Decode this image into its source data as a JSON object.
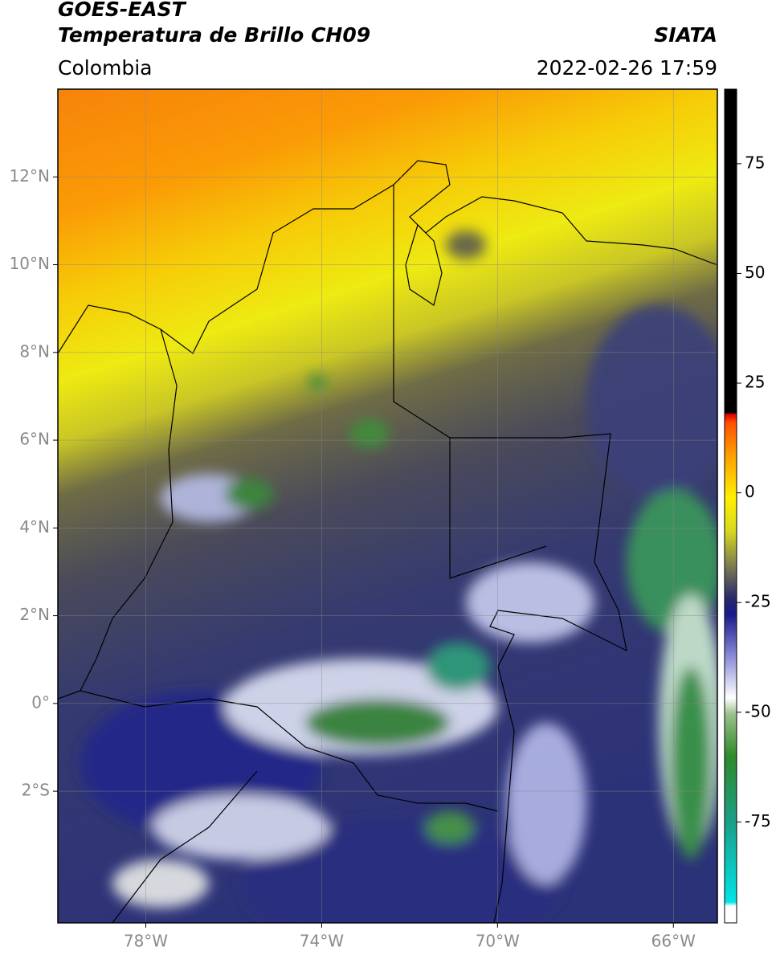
{
  "header": {
    "satellite": "GOES-EAST",
    "product": "Temperatura de Brillo CH09",
    "source": "SIATA",
    "region": "Colombia",
    "timestamp": "2022-02-26 17:59"
  },
  "map": {
    "xlim": [
      -80,
      -65
    ],
    "ylim": [
      -5,
      14
    ],
    "xticks": [
      {
        "value": -78,
        "label": "78°W"
      },
      {
        "value": -74,
        "label": "74°W"
      },
      {
        "value": -70,
        "label": "70°W"
      },
      {
        "value": -66,
        "label": "66°W"
      }
    ],
    "yticks": [
      {
        "value": 12,
        "label": "12°N"
      },
      {
        "value": 10,
        "label": "10°N"
      },
      {
        "value": 8,
        "label": "8°N"
      },
      {
        "value": 6,
        "label": "6°N"
      },
      {
        "value": 4,
        "label": "4°N"
      },
      {
        "value": 2,
        "label": "2°N"
      },
      {
        "value": 0,
        "label": "0°"
      },
      {
        "value": -2,
        "label": "2°S"
      }
    ],
    "grid": true
  },
  "colorbar": {
    "lim": [
      -98,
      92
    ],
    "ticks": [
      75,
      50,
      25,
      0,
      -25,
      -50,
      -75
    ]
  }
}
